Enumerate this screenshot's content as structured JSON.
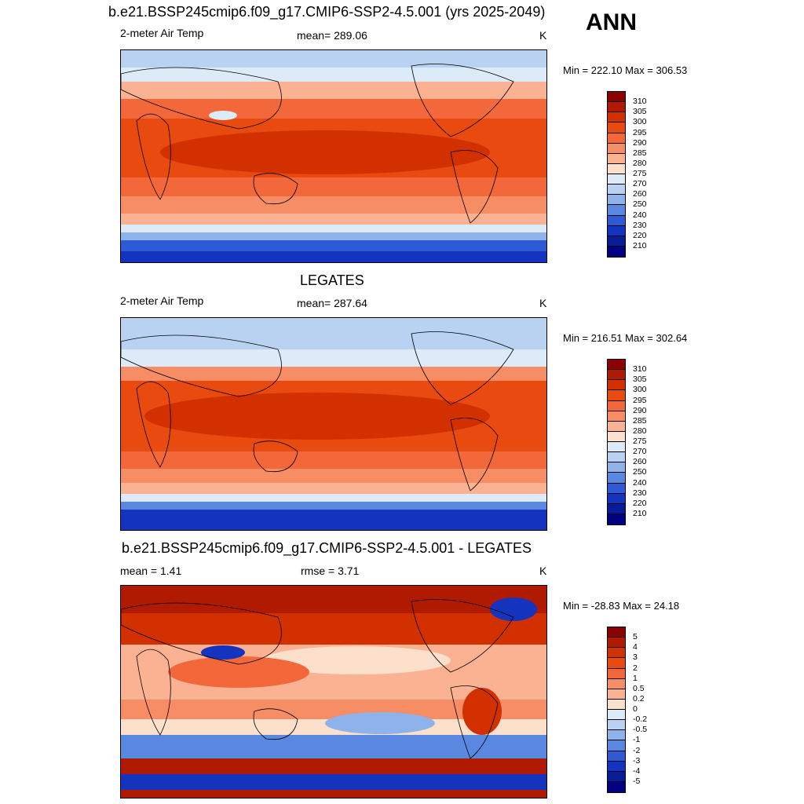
{
  "header": {
    "title": "b.e21.BSSP245cmip6.f09_g17.CMIP6-SSP2-4.5.001 (yrs 2025-2049)",
    "season": "ANN"
  },
  "panels": [
    {
      "variable": "2-meter Air Temp",
      "stat": "mean= 289.06",
      "units": "K",
      "minmax": "Min = 222.10 Max = 306.53",
      "colorbar_labels": [
        "310",
        "305",
        "300",
        "295",
        "290",
        "285",
        "280",
        "275",
        "270",
        "260",
        "250",
        "240",
        "230",
        "220",
        "210"
      ]
    },
    {
      "title": "LEGATES",
      "variable": "2-meter Air Temp",
      "stat": "mean= 287.64",
      "units": "K",
      "minmax": "Min = 216.51 Max = 302.64",
      "colorbar_labels": [
        "310",
        "305",
        "300",
        "295",
        "290",
        "285",
        "280",
        "275",
        "270",
        "260",
        "250",
        "240",
        "230",
        "220",
        "210"
      ]
    },
    {
      "title": "b.e21.BSSP245cmip6.f09_g17.CMIP6-SSP2-4.5.001 - LEGATES",
      "stat_left": "mean =   1.41",
      "stat_mid": "rmse =   3.71",
      "units": "K",
      "minmax": "Min = -28.83 Max =  24.18",
      "colorbar_labels": [
        "5",
        "4",
        "3",
        "2",
        "1",
        "0.5",
        "0.2",
        "0",
        "-0.2",
        "-0.5",
        "-1",
        "-2",
        "-3",
        "-4",
        "-5"
      ]
    }
  ],
  "colors": {
    "temp_scale": [
      "#8b0000",
      "#b01a00",
      "#d33000",
      "#e84a10",
      "#f2683a",
      "#f78d65",
      "#fbb292",
      "#fde0cc",
      "#ddeaf8",
      "#b9d2f2",
      "#8db3ea",
      "#5a88e0",
      "#2e5ad6",
      "#1434c0",
      "#061c98",
      "#000080"
    ],
    "diff_scale": [
      "#8b0000",
      "#b01a00",
      "#d33000",
      "#e84a10",
      "#f2683a",
      "#f78d65",
      "#fbb292",
      "#fde0cc",
      "#ddeaf8",
      "#b9d2f2",
      "#8db3ea",
      "#5a88e0",
      "#2e5ad6",
      "#1434c0",
      "#061c98",
      "#000080"
    ]
  }
}
